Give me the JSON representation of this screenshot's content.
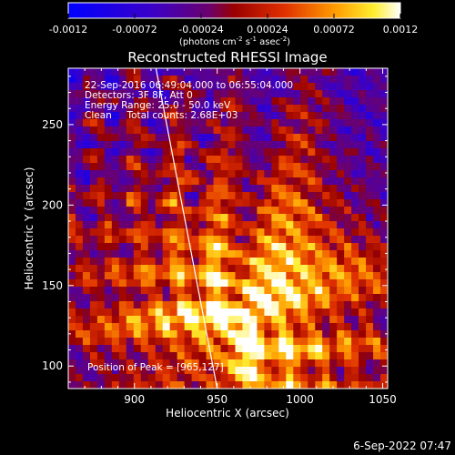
{
  "colorbar": {
    "ticks": [
      "-0.0012",
      "-0.00072",
      "-0.00024",
      "0.00024",
      "0.00072",
      "0.0012"
    ],
    "unit_main": "(photons cm",
    "unit_sup1": "-2",
    "unit_mid1": " s",
    "unit_sup2": "-1",
    "unit_mid2": " asec",
    "unit_sup3": "-2",
    "unit_end": ")"
  },
  "annotations": {
    "time_range": "22-Sep-2016 06:49:04.000 to 06:55:04.000",
    "detectors": "Detectors: 3F 8F, Att 0",
    "energy": "Energy Range: 25.0 - 50.0 keV",
    "clean": "Clean     Total counts: 2.68E+03",
    "peak": "Position of Peak = [965,127]"
  },
  "footer": {
    "date": "6-Sep-2022 07:47"
  },
  "colors": {
    "background": "#000000",
    "text": "#ffffff",
    "limb": "#ffffff"
  },
  "chart_data": {
    "type": "heatmap",
    "title": "Reconstructed RHESSI Image",
    "xlabel": "Heliocentric X (arcsec)",
    "ylabel": "Heliocentric Y (arcsec)",
    "xlim": [
      860,
      1053
    ],
    "ylim": [
      86,
      285
    ],
    "x_ticks": [
      900,
      950,
      1000,
      1050
    ],
    "y_ticks": [
      100,
      150,
      200,
      250
    ],
    "colorscale_range": [
      -0.0012,
      0.0012
    ],
    "colormap": "blue-purple-red-yellow-white (RHESSI)",
    "peak_position": [
      965,
      127
    ],
    "solar_limb": [
      [
        913,
        285
      ],
      [
        950,
        86
      ]
    ]
  }
}
